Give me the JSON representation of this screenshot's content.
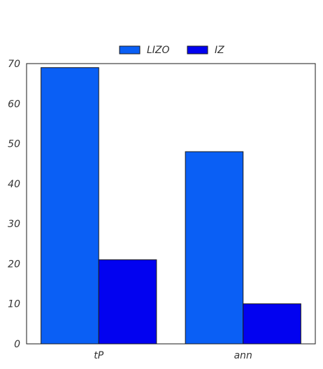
{
  "chart_data": {
    "type": "bar",
    "categories": [
      "tP",
      "ann"
    ],
    "series": [
      {
        "name": "LIZO",
        "values": [
          69,
          48
        ],
        "color": "#0a5ff5"
      },
      {
        "name": "IZ",
        "values": [
          21,
          10
        ],
        "color": "#0202f0"
      }
    ],
    "title": "",
    "xlabel": "",
    "ylabel": "",
    "ylim": [
      0,
      70
    ],
    "yticks": [
      "0",
      "10",
      "20",
      "30",
      "40",
      "50",
      "60",
      "70"
    ],
    "grid": false,
    "legend_position": "top-center"
  }
}
